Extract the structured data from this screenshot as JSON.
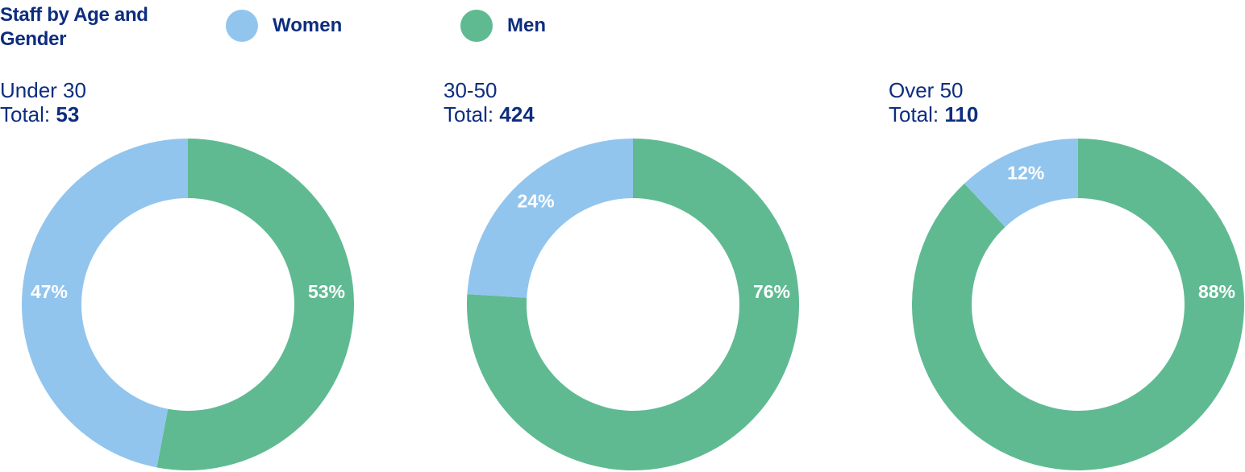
{
  "chart_data": {
    "type": "pie",
    "variant": "donut",
    "title": "Staff by Age and Gender",
    "legend": [
      {
        "name": "Women",
        "color": "#92c5ee"
      },
      {
        "name": "Men",
        "color": "#5fba92"
      }
    ],
    "legend_position": "top",
    "total_prefix": "Total:",
    "groups": [
      {
        "label": "Under 30",
        "total": "53",
        "slices": [
          {
            "series": "Women",
            "value": 47,
            "label": "47%"
          },
          {
            "series": "Men",
            "value": 53,
            "label": "53%"
          }
        ]
      },
      {
        "label": "30-50",
        "total": "424",
        "slices": [
          {
            "series": "Women",
            "value": 24,
            "label": "24%"
          },
          {
            "series": "Men",
            "value": 76,
            "label": "76%"
          }
        ]
      },
      {
        "label": "Over 50",
        "total": "110",
        "slices": [
          {
            "series": "Women",
            "value": 12,
            "label": "12%"
          },
          {
            "series": "Men",
            "value": 88,
            "label": "88%"
          }
        ]
      }
    ]
  }
}
